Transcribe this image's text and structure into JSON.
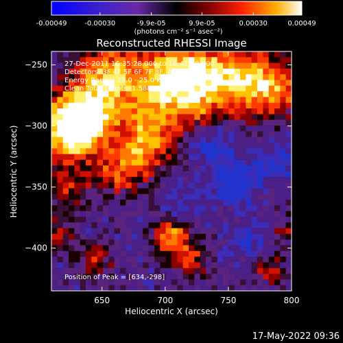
{
  "chart_data": {
    "type": "heatmap",
    "title": "Reconstructed RHESSI Image",
    "xlabel": "Heliocentric X (arcsec)",
    "ylabel": "Heliocentric Y (arcsec)",
    "xlim": [
      610,
      800
    ],
    "ylim": [
      -435,
      -239
    ],
    "xticks": [
      650,
      700,
      750,
      800
    ],
    "yticks": [
      -250,
      -300,
      -350,
      -400
    ],
    "colorbar": {
      "min": -0.00049,
      "max": 0.00049,
      "ticks": [
        -0.00049,
        -0.0003,
        -9.9e-05,
        9.9e-05,
        0.0003,
        0.00049
      ],
      "tick_labels": [
        "-0.00049",
        "-0.00030",
        "-9.9e-05",
        "9.9e-05",
        "0.00030",
        "0.00049"
      ],
      "units_text": "(photons cm⁻² s⁻¹ asec⁻²)"
    },
    "annotations": [
      "27-Dec-2011 16:35:28.000 to 16:41:28.000",
      "Detectors: 3F 4F 5F 6F 7F 8F, Att 0",
      "Energy Range: 12.0 - 25.0 keV",
      "Clean    Total counts: 1.58E+04"
    ],
    "peak_text": "Position of Peak = [634,-298]",
    "peak": [
      634,
      -298
    ]
  },
  "footer": {
    "timestamp": "17-May-2022 09:36"
  }
}
